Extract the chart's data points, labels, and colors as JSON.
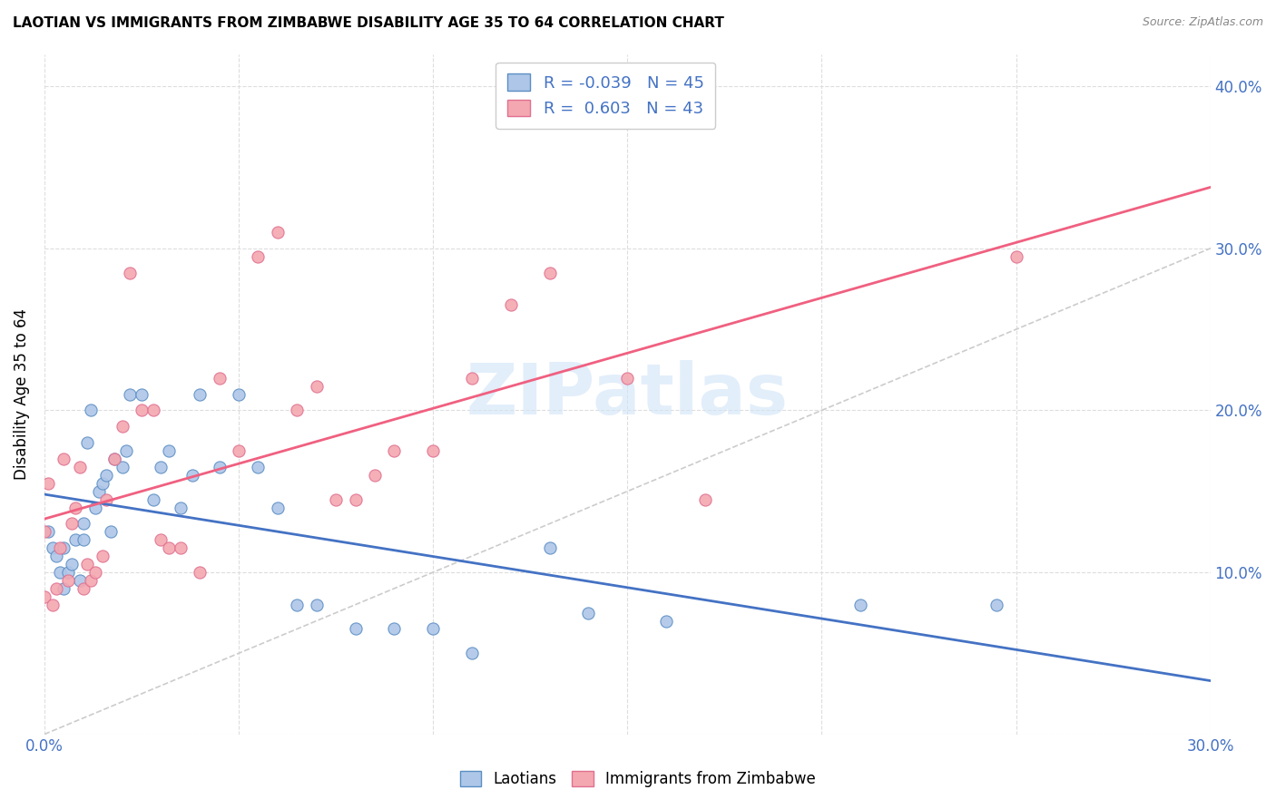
{
  "title": "LAOTIAN VS IMMIGRANTS FROM ZIMBABWE DISABILITY AGE 35 TO 64 CORRELATION CHART",
  "source": "Source: ZipAtlas.com",
  "ylabel_label": "Disability Age 35 to 64",
  "xlim": [
    0.0,
    0.3
  ],
  "ylim": [
    0.0,
    0.42
  ],
  "laotian_color": "#aec6e8",
  "zimbabwe_color": "#f4a7b0",
  "laotian_edge_color": "#5b8ec4",
  "zimbabwe_edge_color": "#e07090",
  "trendline_color_laotian": "#4472c4",
  "trendline_color_zimbabwe": "#f06080",
  "r_laotian": -0.039,
  "n_laotian": 45,
  "r_zimbabwe": 0.603,
  "n_zimbabwe": 43,
  "diagonal_color": "#cccccc",
  "laotian_x": [
    0.001,
    0.002,
    0.003,
    0.004,
    0.005,
    0.005,
    0.006,
    0.007,
    0.008,
    0.009,
    0.01,
    0.01,
    0.011,
    0.012,
    0.013,
    0.014,
    0.015,
    0.016,
    0.017,
    0.018,
    0.02,
    0.021,
    0.022,
    0.025,
    0.028,
    0.03,
    0.032,
    0.035,
    0.038,
    0.04,
    0.045,
    0.05,
    0.055,
    0.06,
    0.065,
    0.07,
    0.08,
    0.09,
    0.1,
    0.11,
    0.13,
    0.14,
    0.21,
    0.245,
    0.16
  ],
  "laotian_y": [
    0.125,
    0.115,
    0.11,
    0.1,
    0.115,
    0.09,
    0.1,
    0.105,
    0.12,
    0.095,
    0.13,
    0.12,
    0.18,
    0.2,
    0.14,
    0.15,
    0.155,
    0.16,
    0.125,
    0.17,
    0.165,
    0.175,
    0.21,
    0.21,
    0.145,
    0.165,
    0.175,
    0.14,
    0.16,
    0.21,
    0.165,
    0.21,
    0.165,
    0.14,
    0.08,
    0.08,
    0.065,
    0.065,
    0.065,
    0.05,
    0.115,
    0.075,
    0.08,
    0.08,
    0.07
  ],
  "zimbabwe_x": [
    0.0,
    0.0,
    0.001,
    0.002,
    0.003,
    0.004,
    0.005,
    0.006,
    0.007,
    0.008,
    0.009,
    0.01,
    0.011,
    0.012,
    0.013,
    0.015,
    0.016,
    0.018,
    0.02,
    0.022,
    0.025,
    0.028,
    0.03,
    0.032,
    0.035,
    0.04,
    0.045,
    0.05,
    0.055,
    0.06,
    0.065,
    0.07,
    0.075,
    0.08,
    0.085,
    0.09,
    0.1,
    0.11,
    0.12,
    0.13,
    0.15,
    0.17,
    0.25
  ],
  "zimbabwe_y": [
    0.125,
    0.085,
    0.155,
    0.08,
    0.09,
    0.115,
    0.17,
    0.095,
    0.13,
    0.14,
    0.165,
    0.09,
    0.105,
    0.095,
    0.1,
    0.11,
    0.145,
    0.17,
    0.19,
    0.285,
    0.2,
    0.2,
    0.12,
    0.115,
    0.115,
    0.1,
    0.22,
    0.175,
    0.295,
    0.31,
    0.2,
    0.215,
    0.145,
    0.145,
    0.16,
    0.175,
    0.175,
    0.22,
    0.265,
    0.285,
    0.22,
    0.145,
    0.295
  ],
  "watermark": "ZIPatlas",
  "background_color": "#ffffff",
  "grid_color": "#dddddd",
  "tick_color": "#4472c4",
  "legend_label_color": "#4472c4"
}
